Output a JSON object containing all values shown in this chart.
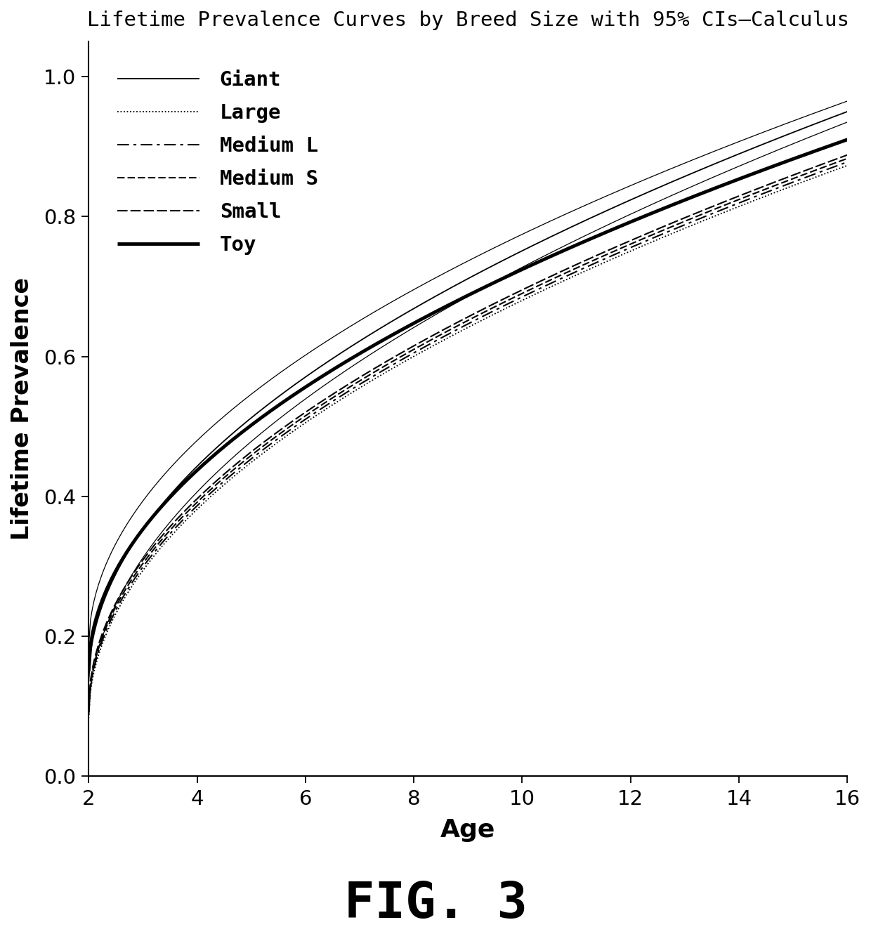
{
  "title": "Lifetime Prevalence Curves by Breed Size with 95% CIs–Calculus",
  "xlabel": "Age",
  "ylabel": "Lifetime Prevalence",
  "fig_label": "FIG. 3",
  "xlim": [
    2,
    16
  ],
  "ylim": [
    0.0,
    1.05
  ],
  "xticks": [
    2,
    4,
    6,
    8,
    10,
    12,
    14,
    16
  ],
  "yticks": [
    0.0,
    0.2,
    0.4,
    0.6,
    0.8,
    1.0
  ],
  "curves": {
    "Giant": {
      "p0": 0.135,
      "p16": 0.95,
      "lw": 1.3,
      "lsname": "solid"
    },
    "Large": {
      "p0": 0.083,
      "p16": 0.873,
      "lw": 1.3,
      "lsname": "densely_dotted"
    },
    "Medium_L": {
      "p0": 0.088,
      "p16": 0.878,
      "lw": 1.5,
      "lsname": "loosely_dashdot"
    },
    "Medium_S": {
      "p0": 0.093,
      "p16": 0.883,
      "lw": 1.5,
      "lsname": "dashed_medium"
    },
    "Small": {
      "p0": 0.098,
      "p16": 0.888,
      "lw": 1.5,
      "lsname": "loosely_dashed"
    },
    "Toy": {
      "p0": 0.15,
      "p16": 0.91,
      "lw": 3.5,
      "lsname": "solid"
    }
  },
  "legend_labels": [
    "Giant",
    "Large",
    "Medium L",
    "Medium S",
    "Small",
    "Toy"
  ],
  "giant_ci_lo_p0": 0.085,
  "giant_ci_lo_p16": 0.935,
  "giant_ci_hi_p0": 0.185,
  "giant_ci_hi_p16": 0.965,
  "ci_lw": 0.9,
  "background_color": "#ffffff",
  "line_color": "#000000"
}
